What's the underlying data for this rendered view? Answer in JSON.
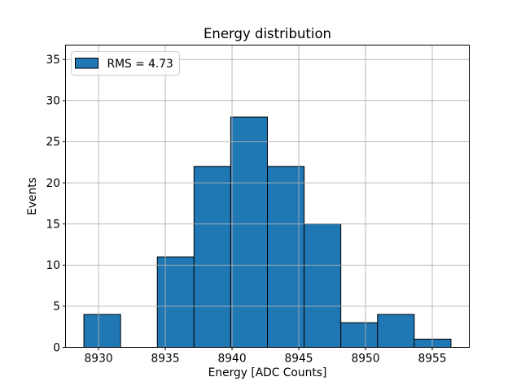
{
  "figure": {
    "background": "#ffffff"
  },
  "chart_data": {
    "type": "bar",
    "subtype": "histogram",
    "title": "Energy distribution",
    "xlabel": "Energy [ADC Counts]",
    "ylabel": "Events",
    "legend": {
      "label": "RMS = 4.73",
      "position": "upper left"
    },
    "bin_edges": [
      8928.9,
      8931.65,
      8934.4,
      8937.15,
      8939.9,
      8942.65,
      8945.4,
      8948.15,
      8950.9,
      8953.65,
      8956.4
    ],
    "counts": [
      4,
      0,
      11,
      22,
      28,
      22,
      15,
      3,
      4,
      1
    ],
    "xlim": [
      8927.525,
      8957.775
    ],
    "ylim": [
      0,
      36.75
    ],
    "xticks": [
      8930,
      8935,
      8940,
      8945,
      8950,
      8955
    ],
    "yticks": [
      0,
      5,
      10,
      15,
      20,
      25,
      30,
      35
    ],
    "grid": true,
    "grid_above_bars": true,
    "colors": {
      "bar_fill": "#1f77b4",
      "bar_edge": "#000000",
      "grid": "#b0b0b0",
      "axis": "#000000",
      "legend_border": "#cccccc",
      "background": "#ffffff"
    }
  }
}
